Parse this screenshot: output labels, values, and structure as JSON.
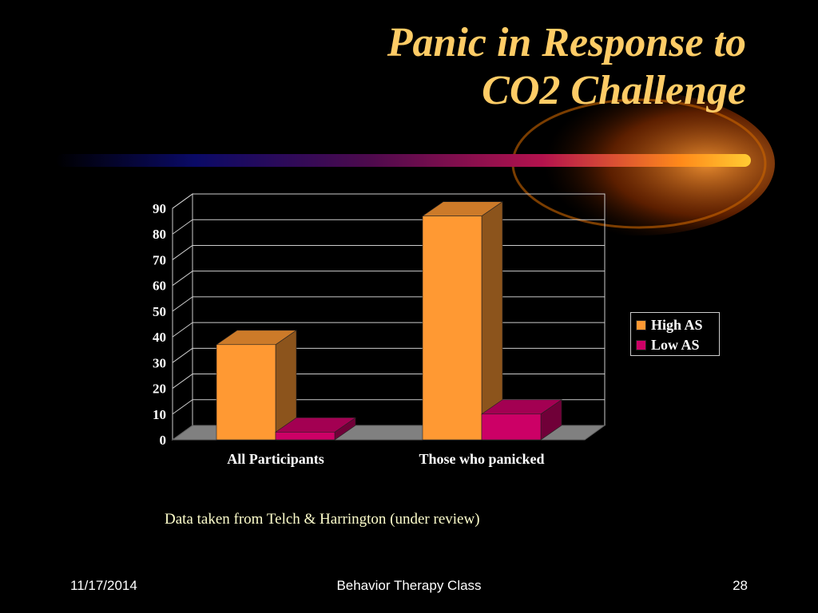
{
  "slide": {
    "title_line1": "Panic in Response to",
    "title_line2": "CO2 Challenge",
    "caption": "Data taken from Telch & Harrington (under review)",
    "footer_date": "11/17/2014",
    "footer_center": "Behavior Therapy Class",
    "footer_page": "28"
  },
  "colors": {
    "title": "#ffcc66",
    "high_as": "#ff9933",
    "low_as": "#cc0066",
    "background": "#000000"
  },
  "chart_data": {
    "type": "bar",
    "categories": [
      "All Participants",
      "Those who panicked"
    ],
    "series": [
      {
        "name": "High AS",
        "values": [
          37,
          87
        ]
      },
      {
        "name": "Low AS",
        "values": [
          3,
          10
        ]
      }
    ],
    "ylim": [
      0,
      90
    ],
    "yticks": [
      0,
      10,
      20,
      30,
      40,
      50,
      60,
      70,
      80,
      90
    ],
    "grid": true,
    "legend_position": "right",
    "style": "3d"
  }
}
